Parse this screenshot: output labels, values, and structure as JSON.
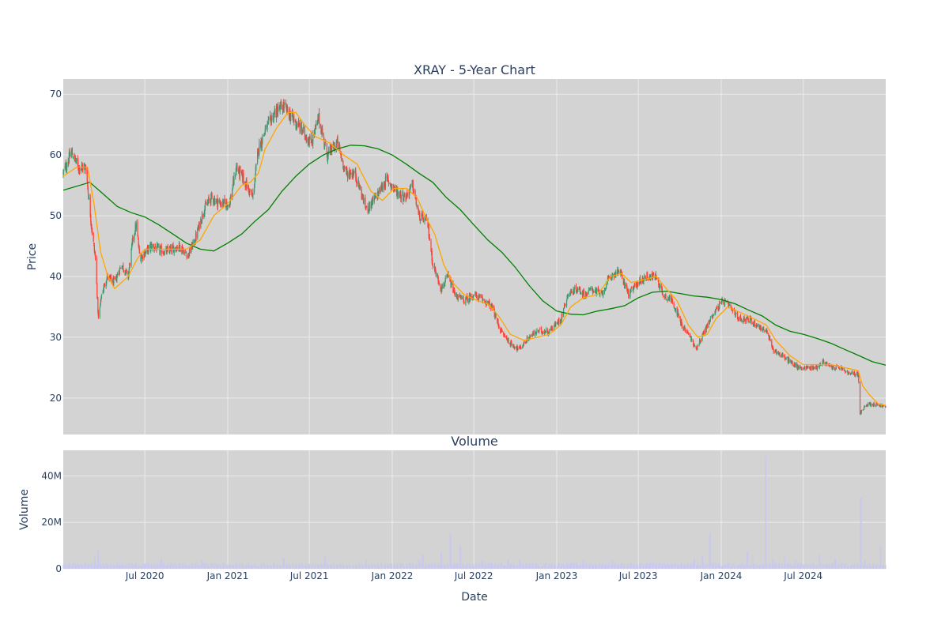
{
  "chart_data": [
    {
      "type": "candlestick",
      "title": "XRAY - 5-Year Chart",
      "xlabel": "",
      "ylabel": "Price",
      "ylim": [
        14,
        72.5
      ],
      "yticks": [
        20,
        30,
        40,
        50,
        60,
        70
      ],
      "xlim": [
        "2020-01-02",
        "2024-12-31"
      ],
      "x_ticks": [
        {
          "date": "2020-07-01",
          "label": "Jul 2020"
        },
        {
          "date": "2021-01-01",
          "label": "Jan 2021"
        },
        {
          "date": "2021-07-01",
          "label": "Jul 2021"
        },
        {
          "date": "2022-01-01",
          "label": "Jan 2022"
        },
        {
          "date": "2022-07-01",
          "label": "Jul 2022"
        },
        {
          "date": "2023-01-01",
          "label": "Jan 2023"
        },
        {
          "date": "2023-07-01",
          "label": "Jul 2023"
        },
        {
          "date": "2024-01-01",
          "label": "Jan 2024"
        },
        {
          "date": "2024-07-01",
          "label": "Jul 2024"
        }
      ],
      "grid": true,
      "legend": "none",
      "colors": {
        "up": "#3d9970",
        "down": "#ff4136",
        "ma_short": "#ffa500",
        "ma_long": "#008000",
        "plot_bg": "#d3d3d3",
        "grid": "#ebebeb"
      },
      "close_path": [
        [
          "2020-01-02",
          57
        ],
        [
          "2020-01-20",
          60.5
        ],
        [
          "2020-02-05",
          58
        ],
        [
          "2020-02-21",
          58
        ],
        [
          "2020-03-05",
          48
        ],
        [
          "2020-03-13",
          43
        ],
        [
          "2020-03-20",
          33
        ],
        [
          "2020-03-27",
          37
        ],
        [
          "2020-04-08",
          40
        ],
        [
          "2020-04-25",
          39
        ],
        [
          "2020-05-10",
          42
        ],
        [
          "2020-05-25",
          40
        ],
        [
          "2020-06-05",
          46.5
        ],
        [
          "2020-06-12",
          48.5
        ],
        [
          "2020-06-20",
          43
        ],
        [
          "2020-07-15",
          45
        ],
        [
          "2020-08-15",
          44
        ],
        [
          "2020-09-15",
          45
        ],
        [
          "2020-10-05",
          43.5
        ],
        [
          "2020-10-20",
          46
        ],
        [
          "2020-11-09",
          51
        ],
        [
          "2020-11-25",
          53
        ],
        [
          "2020-12-15",
          52
        ],
        [
          "2021-01-05",
          52
        ],
        [
          "2021-01-20",
          58
        ],
        [
          "2021-02-05",
          56
        ],
        [
          "2021-02-25",
          53
        ],
        [
          "2021-03-10",
          61
        ],
        [
          "2021-03-25",
          64
        ],
        [
          "2021-04-15",
          67
        ],
        [
          "2021-05-05",
          68
        ],
        [
          "2021-05-25",
          66
        ],
        [
          "2021-06-15",
          64
        ],
        [
          "2021-07-05",
          62
        ],
        [
          "2021-07-22",
          66
        ],
        [
          "2021-08-10",
          60
        ],
        [
          "2021-09-01",
          62
        ],
        [
          "2021-09-20",
          57
        ],
        [
          "2021-10-10",
          57
        ],
        [
          "2021-11-05",
          51
        ],
        [
          "2021-11-25",
          53
        ],
        [
          "2021-12-20",
          56
        ],
        [
          "2022-01-10",
          54
        ],
        [
          "2022-01-30",
          53
        ],
        [
          "2022-02-15",
          55
        ],
        [
          "2022-03-01",
          50
        ],
        [
          "2022-03-20",
          49
        ],
        [
          "2022-04-01",
          42
        ],
        [
          "2022-04-20",
          38
        ],
        [
          "2022-05-05",
          40
        ],
        [
          "2022-05-20",
          37
        ],
        [
          "2022-06-10",
          36
        ],
        [
          "2022-07-01",
          37
        ],
        [
          "2022-07-25",
          36
        ],
        [
          "2022-08-10",
          35
        ],
        [
          "2022-08-30",
          31
        ],
        [
          "2022-09-20",
          29
        ],
        [
          "2022-10-10",
          28
        ],
        [
          "2022-10-31",
          30
        ],
        [
          "2022-11-20",
          31
        ],
        [
          "2022-12-15",
          31
        ],
        [
          "2023-01-10",
          33
        ],
        [
          "2023-01-25",
          37
        ],
        [
          "2023-02-15",
          38
        ],
        [
          "2023-03-05",
          37
        ],
        [
          "2023-03-20",
          38
        ],
        [
          "2023-04-10",
          37
        ],
        [
          "2023-04-30",
          40
        ],
        [
          "2023-05-20",
          41
        ],
        [
          "2023-06-10",
          37
        ],
        [
          "2023-06-30",
          39
        ],
        [
          "2023-07-20",
          40
        ],
        [
          "2023-08-10",
          40
        ],
        [
          "2023-08-25",
          37
        ],
        [
          "2023-09-15",
          36
        ],
        [
          "2023-10-05",
          32
        ],
        [
          "2023-10-25",
          30
        ],
        [
          "2023-11-05",
          28
        ],
        [
          "2023-11-25",
          31
        ],
        [
          "2023-12-15",
          34
        ],
        [
          "2024-01-05",
          36
        ],
        [
          "2024-01-20",
          35
        ],
        [
          "2024-02-10",
          33
        ],
        [
          "2024-03-01",
          33
        ],
        [
          "2024-03-20",
          32
        ],
        [
          "2024-04-10",
          31
        ],
        [
          "2024-04-25",
          28
        ],
        [
          "2024-05-15",
          27
        ],
        [
          "2024-06-01",
          26
        ],
        [
          "2024-06-20",
          25
        ],
        [
          "2024-07-10",
          25
        ],
        [
          "2024-07-30",
          25
        ],
        [
          "2024-08-15",
          26
        ],
        [
          "2024-09-01",
          25
        ],
        [
          "2024-09-20",
          25
        ],
        [
          "2024-10-10",
          24
        ],
        [
          "2024-10-31",
          24
        ],
        [
          "2024-11-04",
          17.5
        ],
        [
          "2024-11-20",
          19
        ],
        [
          "2024-12-10",
          19
        ],
        [
          "2024-12-31",
          18.5
        ]
      ],
      "ma_short_path": [
        [
          "2020-01-02",
          56.5
        ],
        [
          "2020-02-01",
          58
        ],
        [
          "2020-02-25",
          58
        ],
        [
          "2020-03-10",
          52
        ],
        [
          "2020-03-25",
          44
        ],
        [
          "2020-04-10",
          40
        ],
        [
          "2020-04-25",
          38
        ],
        [
          "2020-05-10",
          39
        ],
        [
          "2020-05-25",
          40
        ],
        [
          "2020-06-15",
          43
        ],
        [
          "2020-07-01",
          44.5
        ],
        [
          "2020-08-01",
          44.5
        ],
        [
          "2020-09-01",
          44.5
        ],
        [
          "2020-10-01",
          44.5
        ],
        [
          "2020-11-01",
          46
        ],
        [
          "2020-12-01",
          50
        ],
        [
          "2021-01-01",
          52
        ],
        [
          "2021-02-01",
          55
        ],
        [
          "2021-02-20",
          55.5
        ],
        [
          "2021-03-10",
          57
        ],
        [
          "2021-03-25",
          61
        ],
        [
          "2021-04-20",
          64.5
        ],
        [
          "2021-05-15",
          67
        ],
        [
          "2021-06-01",
          67
        ],
        [
          "2021-06-20",
          65
        ],
        [
          "2021-07-15",
          63
        ],
        [
          "2021-08-15",
          62
        ],
        [
          "2021-09-15",
          60
        ],
        [
          "2021-10-15",
          58.5
        ],
        [
          "2021-11-15",
          54
        ],
        [
          "2021-12-10",
          52.5
        ],
        [
          "2022-01-05",
          54.5
        ],
        [
          "2022-02-01",
          54.5
        ],
        [
          "2022-02-25",
          53
        ],
        [
          "2022-03-15",
          50
        ],
        [
          "2022-04-05",
          47
        ],
        [
          "2022-04-25",
          42
        ],
        [
          "2022-05-15",
          39
        ],
        [
          "2022-06-10",
          37
        ],
        [
          "2022-07-10",
          36
        ],
        [
          "2022-08-01",
          35.5
        ],
        [
          "2022-08-25",
          33.5
        ],
        [
          "2022-09-20",
          30.5
        ],
        [
          "2022-10-20",
          29.5
        ],
        [
          "2022-11-20",
          30
        ],
        [
          "2022-12-15",
          30.5
        ],
        [
          "2023-01-10",
          32
        ],
        [
          "2023-02-01",
          35
        ],
        [
          "2023-03-01",
          36.5
        ],
        [
          "2023-04-01",
          37
        ],
        [
          "2023-05-01",
          40
        ],
        [
          "2023-05-25",
          40.5
        ],
        [
          "2023-06-15",
          39
        ],
        [
          "2023-07-15",
          39.5
        ],
        [
          "2023-08-10",
          40
        ],
        [
          "2023-09-01",
          38
        ],
        [
          "2023-09-25",
          36
        ],
        [
          "2023-10-20",
          32
        ],
        [
          "2023-11-10",
          30
        ],
        [
          "2023-12-01",
          30.5
        ],
        [
          "2023-12-20",
          33
        ],
        [
          "2024-01-15",
          35
        ],
        [
          "2024-02-15",
          34
        ],
        [
          "2024-03-15",
          33
        ],
        [
          "2024-04-10",
          32
        ],
        [
          "2024-05-01",
          29.5
        ],
        [
          "2024-06-01",
          27
        ],
        [
          "2024-07-01",
          25.5
        ],
        [
          "2024-08-01",
          25.5
        ],
        [
          "2024-09-01",
          25.5
        ],
        [
          "2024-10-01",
          25
        ],
        [
          "2024-10-31",
          24.5
        ],
        [
          "2024-11-10",
          22
        ],
        [
          "2024-11-25",
          20.5
        ],
        [
          "2024-12-15",
          19
        ],
        [
          "2024-12-31",
          18.8
        ]
      ],
      "ma_long_path": [
        [
          "2020-01-02",
          54.2
        ],
        [
          "2020-03-01",
          55.5
        ],
        [
          "2020-04-01",
          53.5
        ],
        [
          "2020-05-01",
          51.5
        ],
        [
          "2020-06-01",
          50.5
        ],
        [
          "2020-07-01",
          49.8
        ],
        [
          "2020-08-01",
          48.5
        ],
        [
          "2020-09-01",
          47
        ],
        [
          "2020-10-01",
          45.5
        ],
        [
          "2020-11-01",
          44.5
        ],
        [
          "2020-12-01",
          44.2
        ],
        [
          "2021-01-01",
          45.5
        ],
        [
          "2021-02-01",
          47
        ],
        [
          "2021-03-01",
          49
        ],
        [
          "2021-04-01",
          51
        ],
        [
          "2021-05-01",
          54
        ],
        [
          "2021-06-01",
          56.5
        ],
        [
          "2021-07-01",
          58.5
        ],
        [
          "2021-08-01",
          60
        ],
        [
          "2021-09-01",
          61
        ],
        [
          "2021-10-01",
          61.6
        ],
        [
          "2021-11-01",
          61.5
        ],
        [
          "2021-12-01",
          61
        ],
        [
          "2022-01-01",
          60
        ],
        [
          "2022-02-01",
          58.5
        ],
        [
          "2022-03-01",
          57
        ],
        [
          "2022-04-01",
          55.5
        ],
        [
          "2022-05-01",
          53
        ],
        [
          "2022-06-01",
          51
        ],
        [
          "2022-07-01",
          48.5
        ],
        [
          "2022-08-01",
          46
        ],
        [
          "2022-09-01",
          44
        ],
        [
          "2022-10-01",
          41.5
        ],
        [
          "2022-11-01",
          38.5
        ],
        [
          "2022-12-01",
          36
        ],
        [
          "2023-01-01",
          34.3
        ],
        [
          "2023-02-01",
          33.8
        ],
        [
          "2023-03-01",
          33.7
        ],
        [
          "2023-04-01",
          34.3
        ],
        [
          "2023-05-01",
          34.7
        ],
        [
          "2023-06-01",
          35.2
        ],
        [
          "2023-07-01",
          36.5
        ],
        [
          "2023-08-01",
          37.4
        ],
        [
          "2023-09-01",
          37.6
        ],
        [
          "2023-10-01",
          37.2
        ],
        [
          "2023-11-01",
          36.8
        ],
        [
          "2023-12-01",
          36.6
        ],
        [
          "2024-01-01",
          36.2
        ],
        [
          "2024-02-01",
          35.5
        ],
        [
          "2024-03-01",
          34.5
        ],
        [
          "2024-04-01",
          33.5
        ],
        [
          "2024-05-01",
          32
        ],
        [
          "2024-06-01",
          31
        ],
        [
          "2024-07-01",
          30.5
        ],
        [
          "2024-08-01",
          29.8
        ],
        [
          "2024-09-01",
          29
        ],
        [
          "2024-10-01",
          28
        ],
        [
          "2024-11-01",
          27
        ],
        [
          "2024-12-01",
          26
        ],
        [
          "2024-12-31",
          25.4
        ]
      ]
    },
    {
      "type": "bar",
      "title": "Volume",
      "xlabel": "Date",
      "ylabel": "Volume",
      "ylim": [
        0,
        51000000
      ],
      "y_ticks": [
        {
          "value": 0,
          "label": "0"
        },
        {
          "value": 20000000,
          "label": "20M"
        },
        {
          "value": 40000000,
          "label": "40M"
        }
      ],
      "grid": true,
      "colors": {
        "bar": "#c8c8f0"
      },
      "baseline_volume": 2000000,
      "spikes": [
        [
          "2020-03-12",
          5000000
        ],
        [
          "2020-03-20",
          8500000
        ],
        [
          "2020-05-01",
          3000000
        ],
        [
          "2020-08-06",
          4500000
        ],
        [
          "2020-11-05",
          3500000
        ],
        [
          "2021-05-05",
          4500000
        ],
        [
          "2021-08-05",
          5000000
        ],
        [
          "2021-11-05",
          3500000
        ],
        [
          "2022-02-28",
          4000000
        ],
        [
          "2022-03-10",
          6000000
        ],
        [
          "2022-04-20",
          7000000
        ],
        [
          "2022-05-10",
          15000000
        ],
        [
          "2022-06-01",
          10000000
        ],
        [
          "2022-07-20",
          3500000
        ],
        [
          "2022-08-10",
          3000000
        ],
        [
          "2022-09-15",
          4000000
        ],
        [
          "2022-10-10",
          3500000
        ],
        [
          "2023-03-01",
          4000000
        ],
        [
          "2023-05-05",
          3500000
        ],
        [
          "2023-08-05",
          3500000
        ],
        [
          "2023-11-02",
          4500000
        ],
        [
          "2023-11-20",
          6000000
        ],
        [
          "2023-12-07",
          15500000
        ],
        [
          "2024-02-28",
          7500000
        ],
        [
          "2024-03-10",
          5500000
        ],
        [
          "2024-04-08",
          48500000
        ],
        [
          "2024-04-25",
          4000000
        ],
        [
          "2024-05-20",
          6000000
        ],
        [
          "2024-06-15",
          4000000
        ],
        [
          "2024-08-05",
          6000000
        ],
        [
          "2024-09-10",
          4500000
        ],
        [
          "2024-11-06",
          30500000
        ],
        [
          "2024-11-15",
          4000000
        ],
        [
          "2024-12-20",
          10000000
        ]
      ]
    }
  ]
}
